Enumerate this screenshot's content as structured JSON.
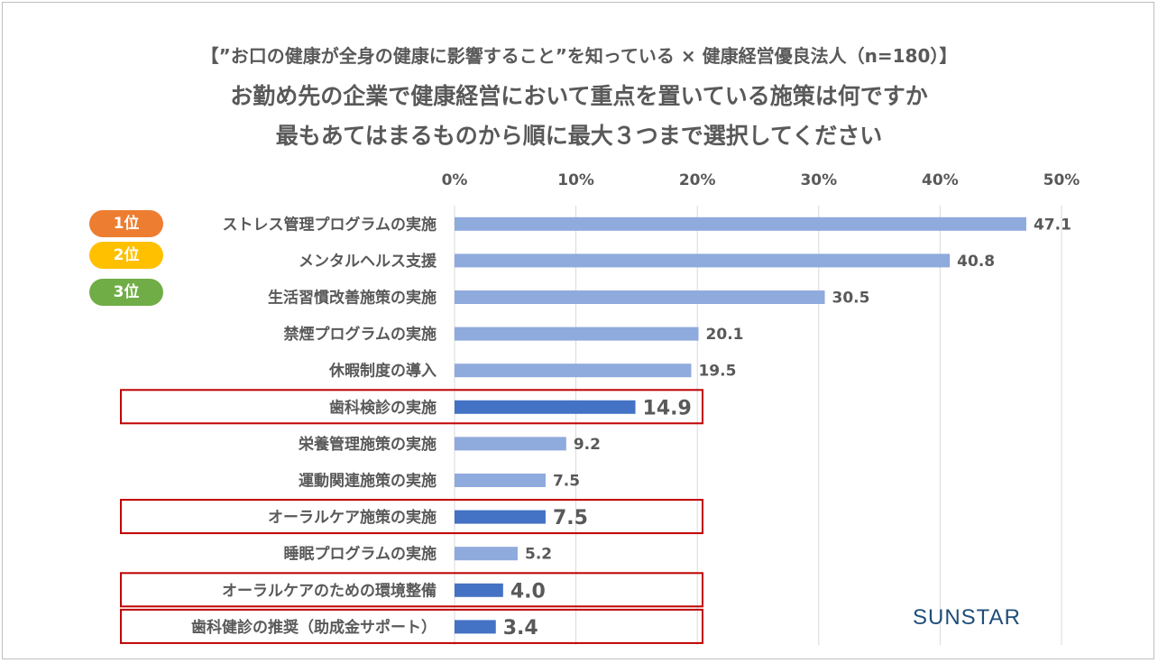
{
  "title": {
    "line1": "【”お口の健康が全身の健康に影響すること”を知っている × 健康経営優良法人（n=180）】",
    "line2": "お勤め先の企業で健康経営において重点を置いている施策は何ですか",
    "line3": "最もあてはまるものから順に最大３つまで選択してください"
  },
  "legend": [
    {
      "label": "1位",
      "color": "#ed7d31"
    },
    {
      "label": "2位",
      "color": "#ffc000"
    },
    {
      "label": "3位",
      "color": "#70ad47"
    }
  ],
  "logo": "SUNSTAR",
  "colors": {
    "bar": "#8faadc",
    "highlight_bar": "#4472c4",
    "highlight_box": "#c00000"
  },
  "chart_data": {
    "type": "bar",
    "orientation": "horizontal",
    "x_ticks": [
      "0%",
      "10%",
      "20%",
      "30%",
      "40%",
      "50%"
    ],
    "xlim": [
      0,
      50
    ],
    "grid": true,
    "categories": [
      "ストレス管理プログラムの実施",
      "メンタルヘルス支援",
      "生活習慣改善施策の実施",
      "禁煙プログラムの実施",
      "休暇制度の導入",
      "歯科検診の実施",
      "栄養管理施策の実施",
      "運動関連施策の実施",
      "オーラルケア施策の実施",
      "睡眠プログラムの実施",
      "オーラルケアのための環境整備",
      "歯科健診の推奨（助成金サポート）"
    ],
    "values": [
      47.1,
      40.8,
      30.5,
      20.1,
      19.5,
      14.9,
      9.2,
      7.5,
      7.5,
      5.2,
      4.0,
      3.4
    ],
    "value_labels": [
      "47.1",
      "40.8",
      "30.5",
      "20.1",
      "19.5",
      "14.9",
      "9.2",
      "7.5",
      "7.5",
      "5.2",
      "4.0",
      "3.4"
    ],
    "highlighted": [
      false,
      false,
      false,
      false,
      false,
      true,
      false,
      false,
      true,
      false,
      true,
      true
    ]
  }
}
